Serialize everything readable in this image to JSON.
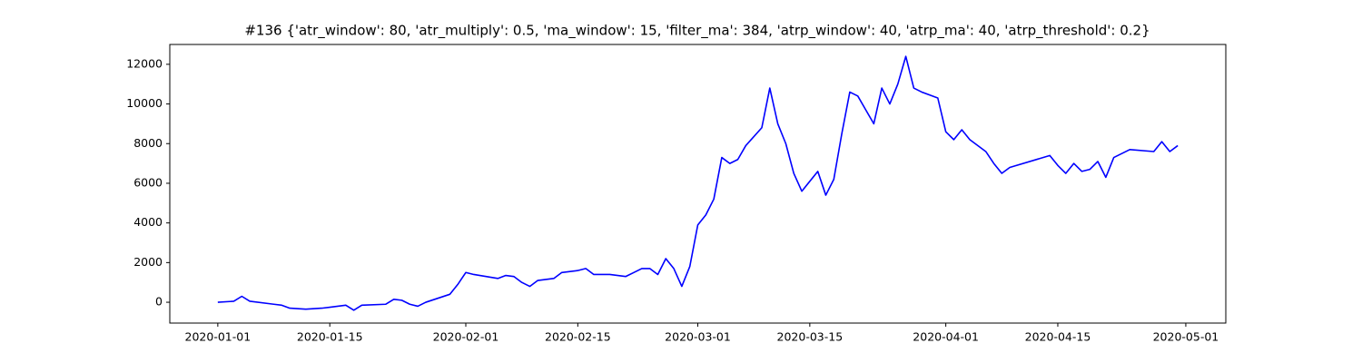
{
  "chart_data": {
    "type": "line",
    "title": "#136 {'atr_window': 80, 'atr_multiply': 0.5, 'ma_window': 15, 'filter_ma': 384, 'atrp_window': 40, 'atrp_ma': 40, 'atrp_threshold': 0.2}",
    "x": [
      "2020-01-01",
      "2020-01-03",
      "2020-01-04",
      "2020-01-05",
      "2020-01-08",
      "2020-01-09",
      "2020-01-10",
      "2020-01-12",
      "2020-01-14",
      "2020-01-15",
      "2020-01-17",
      "2020-01-18",
      "2020-01-19",
      "2020-01-22",
      "2020-01-23",
      "2020-01-24",
      "2020-01-25",
      "2020-01-26",
      "2020-01-27",
      "2020-01-30",
      "2020-01-31",
      "2020-02-01",
      "2020-02-02",
      "2020-02-05",
      "2020-02-06",
      "2020-02-07",
      "2020-02-08",
      "2020-02-09",
      "2020-02-10",
      "2020-02-12",
      "2020-02-13",
      "2020-02-15",
      "2020-02-16",
      "2020-02-17",
      "2020-02-19",
      "2020-02-21",
      "2020-02-22",
      "2020-02-23",
      "2020-02-24",
      "2020-02-25",
      "2020-02-26",
      "2020-02-27",
      "2020-02-28",
      "2020-02-29",
      "2020-03-01",
      "2020-03-02",
      "2020-03-03",
      "2020-03-04",
      "2020-03-05",
      "2020-03-06",
      "2020-03-07",
      "2020-03-09",
      "2020-03-10",
      "2020-03-11",
      "2020-03-12",
      "2020-03-13",
      "2020-03-14",
      "2020-03-16",
      "2020-03-17",
      "2020-03-18",
      "2020-03-19",
      "2020-03-20",
      "2020-03-21",
      "2020-03-22",
      "2020-03-23",
      "2020-03-24",
      "2020-03-25",
      "2020-03-26",
      "2020-03-27",
      "2020-03-28",
      "2020-03-29",
      "2020-03-31",
      "2020-04-01",
      "2020-04-02",
      "2020-04-03",
      "2020-04-04",
      "2020-04-06",
      "2020-04-07",
      "2020-04-08",
      "2020-04-09",
      "2020-04-14",
      "2020-04-15",
      "2020-04-16",
      "2020-04-17",
      "2020-04-18",
      "2020-04-19",
      "2020-04-20",
      "2020-04-21",
      "2020-04-22",
      "2020-04-24",
      "2020-04-27",
      "2020-04-28",
      "2020-04-29",
      "2020-04-30"
    ],
    "series": [
      {
        "name": null,
        "color": "#0000ff",
        "values": [
          0,
          50,
          300,
          50,
          -100,
          -150,
          -300,
          -350,
          -300,
          -250,
          -150,
          -400,
          -150,
          -100,
          150,
          100,
          -100,
          -200,
          0,
          400,
          900,
          1500,
          1400,
          1200,
          1350,
          1300,
          1000,
          800,
          1100,
          1200,
          1500,
          1600,
          1700,
          1400,
          1400,
          1300,
          1500,
          1700,
          1700,
          1400,
          2200,
          1700,
          800,
          1800,
          3900,
          4400,
          5200,
          7300,
          7000,
          7200,
          7900,
          8800,
          10800,
          9000,
          8000,
          6500,
          5600,
          6600,
          5400,
          6200,
          8500,
          10600,
          10400,
          9700,
          9000,
          10800,
          10000,
          11000,
          12400,
          10800,
          10600,
          10300,
          8600,
          8200,
          8700,
          8200,
          7600,
          7000,
          6500,
          6800,
          7400,
          6900,
          6500,
          7000,
          6600,
          6700,
          7100,
          6300,
          7300,
          7700,
          7600,
          8100,
          7600,
          7900
        ]
      }
    ],
    "xlim": [
      "2019-12-26",
      "2020-05-06"
    ],
    "xticks": [
      "2020-01-01",
      "2020-01-15",
      "2020-02-01",
      "2020-02-15",
      "2020-03-01",
      "2020-03-15",
      "2020-04-01",
      "2020-04-15",
      "2020-05-01"
    ],
    "ylim": [
      -1050,
      13000
    ],
    "yticks": [
      0,
      2000,
      4000,
      6000,
      8000,
      10000,
      12000
    ],
    "grid": false
  }
}
